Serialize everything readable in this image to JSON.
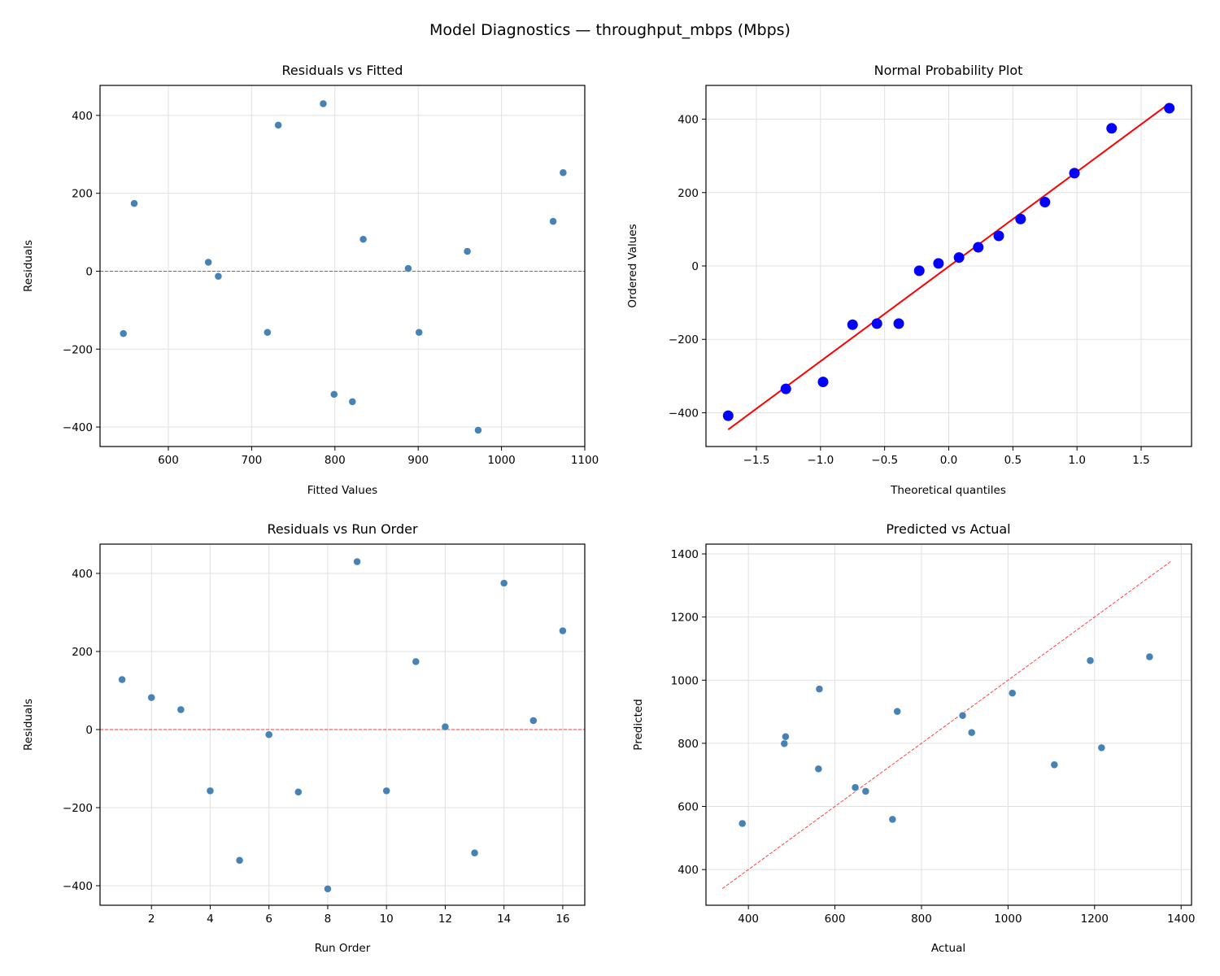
{
  "suptitle": "Model Diagnostics — throughput_mbps (Mbps)",
  "colors": {
    "points": "#4682b4",
    "qq_points": "#0000ff",
    "reference": "#ff0000",
    "grid": "#e0e0e0"
  },
  "chart_data": [
    {
      "type": "scatter",
      "title": "Residuals vs Fitted",
      "xlabel": "Fitted Values",
      "ylabel": "Residuals",
      "xlim": [
        518,
        1100
      ],
      "ylim": [
        -450,
        477
      ],
      "xticks": [
        600,
        700,
        800,
        900,
        1000,
        1100
      ],
      "yticks": [
        -400,
        -200,
        0,
        200,
        400
      ],
      "grid": true,
      "hline": 0,
      "x": [
        546,
        559,
        648,
        660,
        719,
        732,
        786,
        799,
        821,
        834,
        888,
        901,
        959,
        972,
        1062,
        1074
      ],
      "y": [
        -160,
        174,
        23,
        -13,
        -157,
        375,
        430,
        -316,
        -335,
        82,
        7,
        -157,
        51,
        -408,
        128,
        253
      ]
    },
    {
      "type": "scatter",
      "title": "Normal Probability Plot",
      "xlabel": "Theoretical quantiles",
      "ylabel": "Ordered Values",
      "xlim": [
        -1.893,
        1.893
      ],
      "ylim": [
        -492,
        492
      ],
      "xticks": [
        -1.5,
        -1.0,
        -0.5,
        0.0,
        0.5,
        1.0,
        1.5
      ],
      "yticks": [
        -400,
        -200,
        0,
        200,
        400
      ],
      "grid": true,
      "fit_line": true,
      "x": [
        -1.72,
        -1.27,
        -0.98,
        -0.75,
        -0.56,
        -0.39,
        -0.23,
        -0.08,
        0.08,
        0.23,
        0.39,
        0.56,
        0.75,
        0.98,
        1.27,
        1.72
      ],
      "y": [
        -408,
        -335,
        -316,
        -160,
        -157,
        -157,
        -13,
        7,
        23,
        51,
        82,
        128,
        174,
        253,
        375,
        430
      ]
    },
    {
      "type": "scatter",
      "title": "Residuals vs Run Order",
      "xlabel": "Run Order",
      "ylabel": "Residuals",
      "xlim": [
        0.25,
        16.75
      ],
      "ylim": [
        -450,
        475
      ],
      "xticks": [
        2,
        4,
        6,
        8,
        10,
        12,
        14,
        16
      ],
      "yticks": [
        -400,
        -200,
        0,
        200,
        400
      ],
      "grid": true,
      "hline": 0,
      "x": [
        1,
        2,
        3,
        4,
        5,
        6,
        7,
        8,
        9,
        10,
        11,
        12,
        13,
        14,
        15,
        16
      ],
      "y": [
        128,
        82,
        51,
        -157,
        -335,
        -13,
        -160,
        -408,
        430,
        -157,
        174,
        7,
        -316,
        375,
        23,
        253
      ]
    },
    {
      "type": "scatter",
      "title": "Predicted vs Actual",
      "xlabel": "Actual",
      "ylabel": "Predicted",
      "xlim": [
        302,
        1424
      ],
      "ylim": [
        287,
        1431
      ],
      "xticks": [
        400,
        600,
        800,
        1000,
        1200,
        1400
      ],
      "yticks": [
        400,
        600,
        800,
        1000,
        1200,
        1400
      ],
      "grid": true,
      "diagonal": [
        340,
        1378
      ],
      "x": [
        386,
        733,
        671,
        647,
        562,
        1107,
        1216,
        483,
        486,
        916,
        895,
        744,
        1010,
        564,
        1190,
        1327
      ],
      "y": [
        546,
        559,
        648,
        660,
        719,
        732,
        786,
        799,
        821,
        834,
        888,
        901,
        959,
        972,
        1062,
        1074
      ]
    }
  ]
}
